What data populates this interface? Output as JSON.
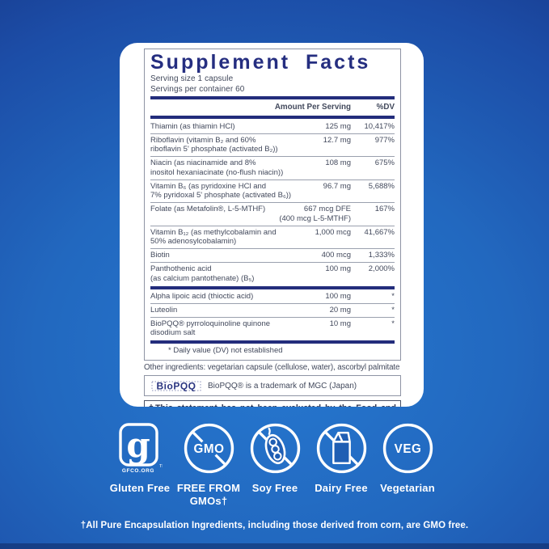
{
  "supplement": {
    "title": "Supplement Facts",
    "serving_size": "Serving size  1 capsule",
    "servings_per_container": "Servings per container  60",
    "columns": {
      "amount": "Amount Per Serving",
      "dv": "%DV"
    },
    "rows": [
      {
        "name": "Thiamin (as thiamin HCl)",
        "amount": "125 mg",
        "dv": "10,417%"
      },
      {
        "name": "Riboflavin (vitamin B₂ and 60%\nriboflavin 5' phosphate (activated B₂))",
        "amount": "12.7 mg",
        "dv": "977%"
      },
      {
        "name": "Niacin (as niacinamide and 8%\ninositol hexaniacinate (no-flush niacin))",
        "amount": "108 mg",
        "dv": "675%"
      },
      {
        "name": "Vitamin B₆ (as pyridoxine HCl and\n7% pyridoxal 5' phosphate (activated B₆))",
        "amount": "96.7 mg",
        "dv": "5,688%"
      },
      {
        "name": "Folate (as Metafolin®, L-5-MTHF)",
        "amount": "667 mcg DFE\n(400 mcg L-5-MTHF)",
        "dv": "167%"
      },
      {
        "name": "Vitamin B₁₂ (as methylcobalamin and\n50% adenosylcobalamin)",
        "amount": "1,000 mcg",
        "dv": "41,667%"
      },
      {
        "name": "Biotin",
        "amount": "400 mcg",
        "dv": "1,333%"
      },
      {
        "name": "Panthothenic acid\n(as calcium pantothenate) (B₅)",
        "amount": "100 mg",
        "dv": "2,000%"
      },
      {
        "name": "Alpha lipoic acid (thioctic acid)",
        "amount": "100 mg",
        "dv": "*",
        "thick_top": true
      },
      {
        "name": "Luteolin",
        "amount": "20 mg",
        "dv": "*"
      },
      {
        "name": "BioPQQ® pyrroloquinoline quinone\ndisodium salt",
        "amount": "10 mg",
        "dv": "*"
      }
    ],
    "footnote": "* Daily value (DV) not established",
    "other_ingredients": "Other ingredients: vegetarian capsule (cellulose, water), ascorbyl palmitate",
    "trademark_logo_text": "BioPQQ",
    "trademark_note": "BioPQQ® is a trademark of MGC (Japan)",
    "disclaimer": "†This statement has not been evaluated by the Food and Drug Administration. This product is not intended to diagnose, treat, cure, or prevent any disease."
  },
  "badges": [
    {
      "label": "Gluten Free",
      "icon": "gfco-logo",
      "icon_text": "g",
      "org": "GFCO.ORG",
      "tm": "TM"
    },
    {
      "label": "FREE FROM\nGMOs†",
      "icon": "gmo-crossed",
      "icon_text": "GMO"
    },
    {
      "label": "Soy Free",
      "icon": "soy-crossed"
    },
    {
      "label": "Dairy Free",
      "icon": "milk-carton-crossed"
    },
    {
      "label": "Vegetarian",
      "icon": "veg-circle",
      "icon_text": "VEG"
    }
  ],
  "footer_note": "†All Pure Encapsulation Ingredients, including those derived from corn, are GMO free.",
  "colors": {
    "label_navy": "#232d7c",
    "title_navy": "#252e80",
    "body_text": "#42495c",
    "background_dark": "#16317f",
    "background_bright": "#2678d0",
    "icon_white": "#ffffff"
  }
}
